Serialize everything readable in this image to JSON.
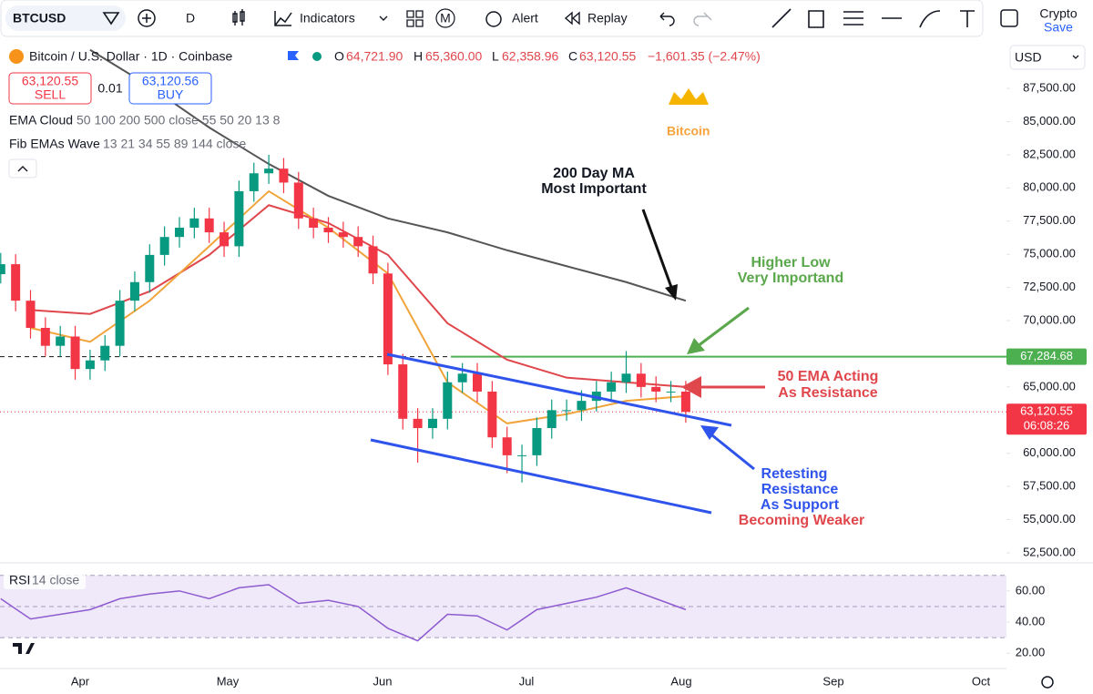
{
  "toolbar": {
    "symbol": "BTCUSD",
    "interval": "D",
    "indicators": "Indicators",
    "m": "M",
    "alert": "Alert",
    "replay": "Replay",
    "crypto": "Crypto",
    "save": "Save"
  },
  "legend": {
    "title": "Bitcoin / U.S. Dollar · 1D · Coinbase",
    "o_label": "O",
    "o": "64,721.90",
    "h_label": "H",
    "h": "65,360.00",
    "l_label": "L",
    "l": "62,358.96",
    "c_label": "C",
    "c": "63,120.55",
    "change": "−1,601.35 (−2.47%)",
    "sell_price": "63,120.55",
    "sell": "SELL",
    "spread": "0.01",
    "buy_price": "63,120.56",
    "buy": "BUY",
    "ema_cloud": "EMA Cloud",
    "ema_cloud_params": "50 100 200 500 close 55 50 20 13 8",
    "fib": "Fib EMAs Wave",
    "fib_params": "13 21 34 55 89 144 close",
    "currency": "USD"
  },
  "chart_data": {
    "type": "candlestick",
    "logo": "Bitcoin",
    "up_color": "#089981",
    "down_color": "#f23645",
    "grid": false,
    "ylim": [
      51950,
      91070
    ],
    "yticks": [
      {
        "value": 52500,
        "label": "52,500.00"
      },
      {
        "value": 55000,
        "label": "55,000.00"
      },
      {
        "value": 57500,
        "label": "57,500.00"
      },
      {
        "value": 60000,
        "label": "60,000.00"
      },
      {
        "value": 62500,
        "label": "62,500.00"
      },
      {
        "value": 65000,
        "label": "65,000.00"
      },
      {
        "value": 67500,
        "label": "67,500.00"
      },
      {
        "value": 70000,
        "label": "70,000.00"
      },
      {
        "value": 72500,
        "label": "72,500.00"
      },
      {
        "value": 75000,
        "label": "75,000.00"
      },
      {
        "value": 77500,
        "label": "77,500.00"
      },
      {
        "value": 80000,
        "label": "80,000.00"
      },
      {
        "value": 82500,
        "label": "82,500.00"
      },
      {
        "value": 85000,
        "label": "85,000.00"
      },
      {
        "value": 87500,
        "label": "87,500.00"
      }
    ],
    "x_labels": [
      "Apr",
      "May",
      "Jun",
      "Jul",
      "Aug",
      "Sep",
      "Oct"
    ],
    "candles": [
      [
        73500,
        75100,
        72800,
        74250
      ],
      [
        74250,
        75000,
        70700,
        71500
      ],
      [
        71500,
        72300,
        68650,
        69450
      ],
      [
        69450,
        70250,
        67300,
        68100
      ],
      [
        68100,
        69600,
        67300,
        68800
      ],
      [
        68800,
        69600,
        65550,
        66350
      ],
      [
        66350,
        67800,
        65550,
        67000
      ],
      [
        67000,
        68900,
        66200,
        68100
      ],
      [
        68100,
        72300,
        67300,
        71500
      ],
      [
        71500,
        73700,
        70700,
        72900
      ],
      [
        72900,
        75750,
        72100,
        74950
      ],
      [
        74950,
        77100,
        74150,
        76300
      ],
      [
        76300,
        77800,
        75500,
        77000
      ],
      [
        77000,
        78500,
        76200,
        77700
      ],
      [
        77700,
        78500,
        75850,
        76650
      ],
      [
        76650,
        77450,
        74800,
        75600
      ],
      [
        75600,
        80550,
        74800,
        79750
      ],
      [
        79750,
        81900,
        78950,
        81100
      ],
      [
        81100,
        82500,
        80300,
        81450
      ],
      [
        81450,
        82250,
        79600,
        80400
      ],
      [
        80400,
        81200,
        76900,
        77700
      ],
      [
        77700,
        78500,
        76200,
        77000
      ],
      [
        77000,
        77800,
        75850,
        76650
      ],
      [
        76650,
        77450,
        75500,
        76300
      ],
      [
        76300,
        77100,
        74800,
        75600
      ],
      [
        75600,
        76400,
        72750,
        73550
      ],
      [
        73550,
        74350,
        65900,
        66700
      ],
      [
        66700,
        67500,
        61800,
        62600
      ],
      [
        62600,
        63400,
        59300,
        61900
      ],
      [
        61900,
        63400,
        61100,
        62600
      ],
      [
        62600,
        66150,
        61800,
        65350
      ],
      [
        65350,
        66800,
        64550,
        66000
      ],
      [
        66000,
        66800,
        63850,
        64650
      ],
      [
        64650,
        65450,
        60400,
        61200
      ],
      [
        61200,
        62000,
        58500,
        59850
      ],
      [
        59850,
        60650,
        57800,
        59850
      ],
      [
        59850,
        62700,
        59050,
        61900
      ],
      [
        61900,
        64050,
        61100,
        63250
      ],
      [
        63250,
        64050,
        62450,
        63250
      ],
      [
        63250,
        64750,
        62450,
        63950
      ],
      [
        63950,
        65450,
        63150,
        64650
      ],
      [
        64650,
        66150,
        63850,
        65350
      ],
      [
        65350,
        67700,
        64550,
        66000
      ],
      [
        66000,
        66800,
        64200,
        65000
      ],
      [
        65000,
        65800,
        63850,
        64650
      ],
      [
        64650,
        65450,
        63850,
        64650
      ],
      [
        64650,
        65450,
        62300,
        63120.55
      ]
    ],
    "lines": [
      {
        "color": "#555555",
        "start": 6,
        "step": 4,
        "values": [
          90400,
          87650,
          84550,
          81800,
          79400,
          77700,
          76650,
          75300,
          74100,
          72900,
          71500
        ]
      },
      {
        "color": "#e0474c",
        "start": 2,
        "step": 4,
        "values": [
          70800,
          70500,
          72200,
          74950,
          78700,
          77350,
          74950,
          69800,
          67050,
          65700,
          65350,
          65000
        ]
      },
      {
        "color": "#f0a43a",
        "start": 2,
        "step": 4,
        "values": [
          69450,
          68400,
          71500,
          75600,
          79750,
          77000,
          73550,
          65350,
          62250,
          62950,
          63950,
          64300
        ]
      }
    ],
    "level": {
      "value": 67284.68,
      "label": "67,284.68",
      "color": "#4caf50"
    },
    "last": {
      "value": 63120.55,
      "label": "63,120.55",
      "countdown": "06:08:26",
      "color": "#f23645"
    },
    "annotations": {
      "ma1": "200 Day MA",
      "ma2": "Most Important",
      "hl1": "Higher Low",
      "hl2": "Very Importand",
      "ema1": "50 EMA Acting",
      "ema2": "As Resistance",
      "rt1": "Retesting",
      "rt2": "Resistance",
      "rt3": "As Support",
      "rt4": "Becoming Weaker"
    },
    "rsi": {
      "name": "RSI",
      "params": "14 close",
      "color": "#8e5bd0",
      "ylim": [
        12,
        71
      ],
      "bands": [
        70,
        50,
        30
      ],
      "yticks": [
        {
          "value": 20,
          "label": "20.00"
        },
        {
          "value": 40,
          "label": "40.00"
        },
        {
          "value": 60,
          "label": "60.00"
        }
      ],
      "step": 2,
      "values": [
        55,
        42,
        45,
        48,
        55,
        58,
        60,
        55,
        62,
        64,
        52,
        54,
        50,
        36,
        28,
        45,
        44,
        35,
        48,
        52,
        56,
        62,
        55,
        48
      ]
    }
  }
}
